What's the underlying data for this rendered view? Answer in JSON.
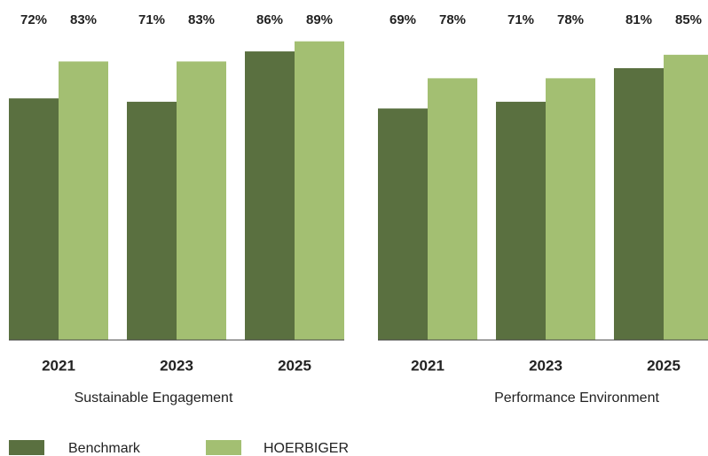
{
  "chart_data": [
    {
      "type": "bar",
      "title": "Sustainable Engagement",
      "categories": [
        "2021",
        "2023",
        "2025"
      ],
      "series": [
        {
          "name": "Benchmark",
          "color": "#5a7040",
          "values": [
            72,
            71,
            86
          ],
          "value_labels": [
            "72%",
            "71%",
            "86%"
          ]
        },
        {
          "name": "HOERBIGER",
          "color": "#a3bf72",
          "values": [
            83,
            83,
            89
          ],
          "value_labels": [
            "83%",
            "83%",
            "89%"
          ]
        }
      ]
    },
    {
      "type": "bar",
      "title": "Performance Environment",
      "categories": [
        "2021",
        "2023",
        "2025"
      ],
      "series": [
        {
          "color": "#5a7040",
          "values": [
            69,
            71,
            81
          ],
          "value_labels": [
            "69%",
            "71%",
            "81%"
          ]
        },
        {
          "color": "#a3bf72",
          "values": [
            78,
            78,
            85
          ],
          "value_labels": [
            "78%",
            "78%",
            "85%"
          ]
        }
      ]
    }
  ]
}
